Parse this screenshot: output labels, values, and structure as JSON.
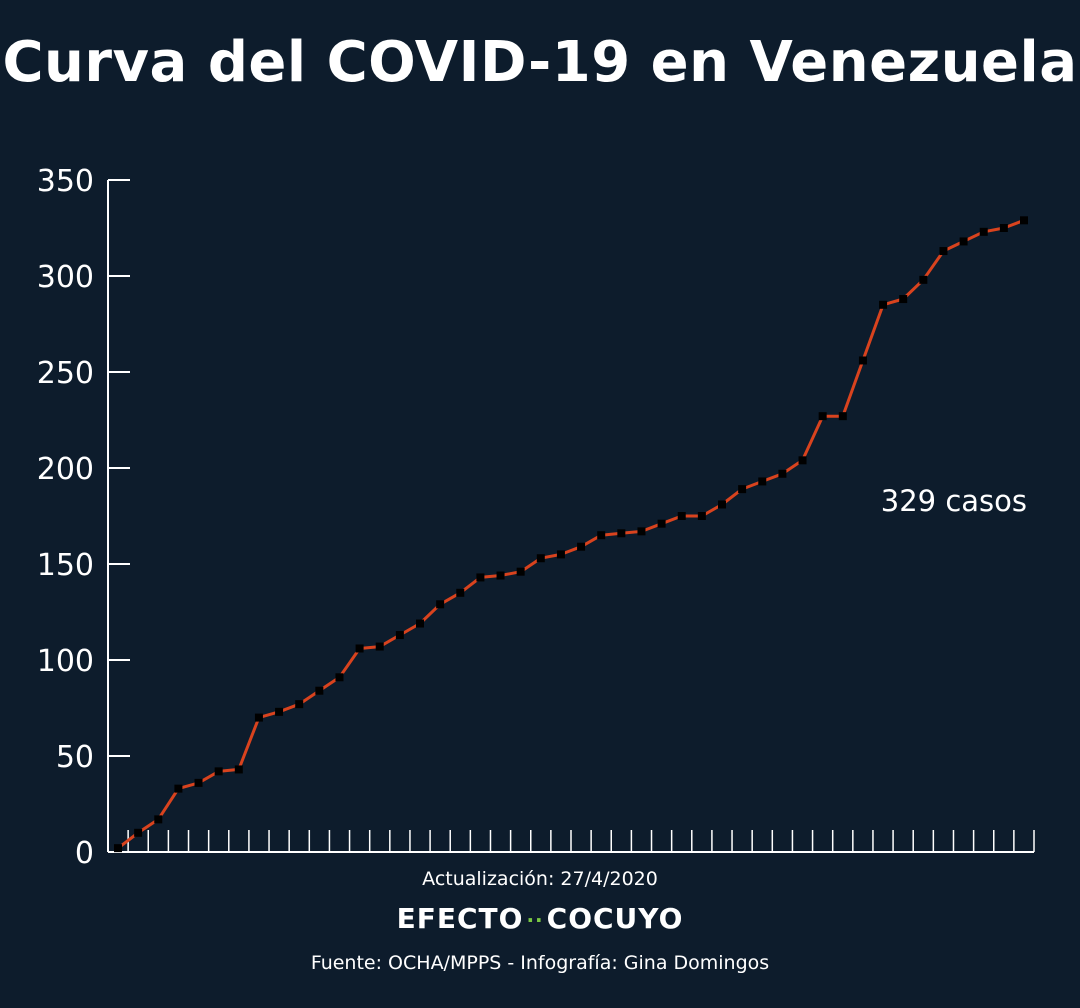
{
  "title": "Curva del COVID-19 en Venezuela",
  "update_label": "Actualización: 27/4/2020",
  "brand": {
    "left": "EFECTO",
    "right": "COCUYO"
  },
  "source": "Fuente: OCHA/MPPS - Infografía: Gina Domingos",
  "chart_data": {
    "type": "line",
    "title": "Curva del COVID-19 en Venezuela",
    "xlabel": "",
    "ylabel": "",
    "ylim": [
      0,
      350
    ],
    "yticks": [
      0,
      50,
      100,
      150,
      200,
      250,
      300,
      350
    ],
    "x_tick_count": 46,
    "grid": false,
    "line_color": "#d9431e",
    "marker_color": "#000000",
    "annotation": "329 casos",
    "series": [
      {
        "values": [
          2,
          10,
          17,
          33,
          36,
          42,
          43,
          70,
          73,
          77,
          84,
          91,
          106,
          107,
          113,
          119,
          129,
          135,
          143,
          144,
          146,
          153,
          155,
          159,
          165,
          166,
          167,
          171,
          175,
          175,
          181,
          189,
          193,
          197,
          204,
          227,
          227,
          256,
          285,
          288,
          298,
          313,
          318,
          323,
          325,
          329
        ]
      }
    ]
  }
}
